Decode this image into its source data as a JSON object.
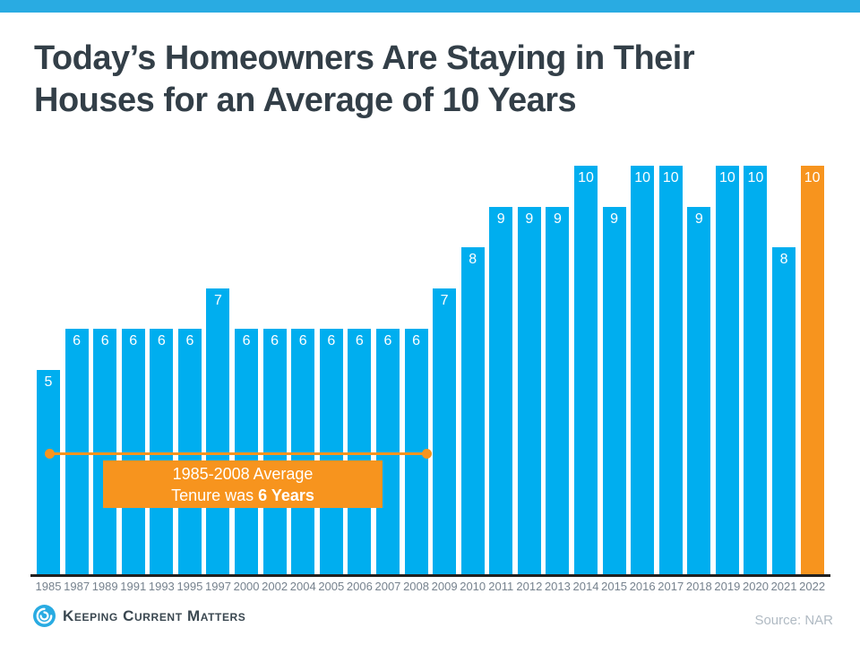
{
  "page": {
    "title_line1": "Today’s Homeowners Are Staying in Their",
    "title_line2": "Houses for an Average of 10 Years"
  },
  "chart_data": {
    "type": "bar",
    "title": "Today’s Homeowners Are Staying in Their Houses for an Average of 10 Years",
    "categories": [
      "1985",
      "1987",
      "1989",
      "1991",
      "1993",
      "1995",
      "1997",
      "2000",
      "2002",
      "2004",
      "2005",
      "2006",
      "2007",
      "2008",
      "2009",
      "2010",
      "2011",
      "2012",
      "2013",
      "2014",
      "2015",
      "2016",
      "2017",
      "2018",
      "2019",
      "2020",
      "2021",
      "2022"
    ],
    "values": [
      5,
      6,
      6,
      6,
      6,
      6,
      7,
      6,
      6,
      6,
      6,
      6,
      6,
      6,
      7,
      8,
      9,
      9,
      9,
      10,
      9,
      10,
      10,
      9,
      10,
      10,
      8,
      10
    ],
    "ylim": [
      0,
      10
    ],
    "xlabel": "",
    "ylabel": "",
    "grid": false,
    "legend": false,
    "value_labels": "inside-top, white",
    "bar_color": "#00AEEF",
    "highlight_index": 27,
    "highlight_color": "#F7941E",
    "annotation": {
      "line1": "1985-2008 Average",
      "line2_normal": "Tenure was ",
      "line2_bold": "6 Years"
    }
  },
  "footer": {
    "logo_text": "Keeping Current Matters",
    "source": "Source: NAR"
  },
  "colors": {
    "topbar": "#29ABE2",
    "bar_blue": "#00AEEF",
    "accent_orange": "#F7941E",
    "title_text": "#333F48",
    "axis_line": "#212121",
    "tick_label": "#76828E",
    "source_text": "#B0BAC3"
  }
}
